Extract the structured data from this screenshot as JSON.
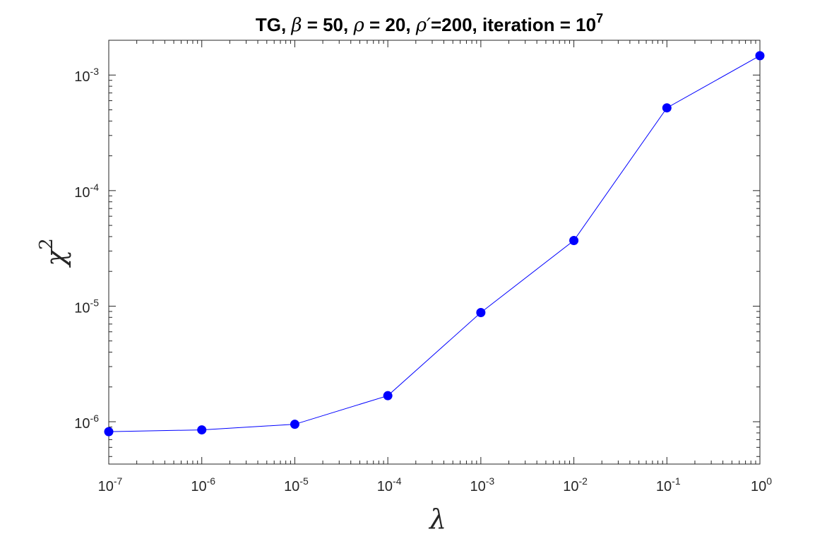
{
  "chart_data": {
    "type": "line",
    "title": {
      "prefix": "TG, ",
      "beta_symbol": "β",
      "beta_text": " = 50, ",
      "rho_symbol": "ρ",
      "rho_text": " = 20, ",
      "rhoprime_symbol": "ρ′",
      "rhoprime_text": "=200, iteration = 10",
      "iteration_exponent": "7"
    },
    "xlabel": "λ",
    "ylabel": {
      "base": "χ",
      "sup": "2"
    },
    "xscale": "log",
    "yscale": "log",
    "xlim": [
      1e-07,
      1
    ],
    "ylim": [
      4.3e-07,
      0.002
    ],
    "grid": false,
    "x_ticks": [
      {
        "base": "10",
        "exp": "-7",
        "value": 1e-07
      },
      {
        "base": "10",
        "exp": "-6",
        "value": 1e-06
      },
      {
        "base": "10",
        "exp": "-5",
        "value": 1e-05
      },
      {
        "base": "10",
        "exp": "-4",
        "value": 0.0001
      },
      {
        "base": "10",
        "exp": "-3",
        "value": 0.001
      },
      {
        "base": "10",
        "exp": "-2",
        "value": 0.01
      },
      {
        "base": "10",
        "exp": "-1",
        "value": 0.1
      },
      {
        "base": "10",
        "exp": "0",
        "value": 1
      }
    ],
    "y_ticks": [
      {
        "base": "10",
        "exp": "-6",
        "value": 1e-06
      },
      {
        "base": "10",
        "exp": "-5",
        "value": 1e-05
      },
      {
        "base": "10",
        "exp": "-4",
        "value": 0.0001
      },
      {
        "base": "10",
        "exp": "-3",
        "value": 0.001
      }
    ],
    "series": [
      {
        "color": "#0000ff",
        "marker": "filled-circle",
        "x": [
          1e-07,
          1e-06,
          1e-05,
          0.0001,
          0.001,
          0.01,
          0.1,
          1
        ],
        "y": [
          8.2e-07,
          8.5e-07,
          9.5e-07,
          1.68e-06,
          8.8e-06,
          3.7e-05,
          0.00052,
          0.00147
        ]
      }
    ]
  }
}
